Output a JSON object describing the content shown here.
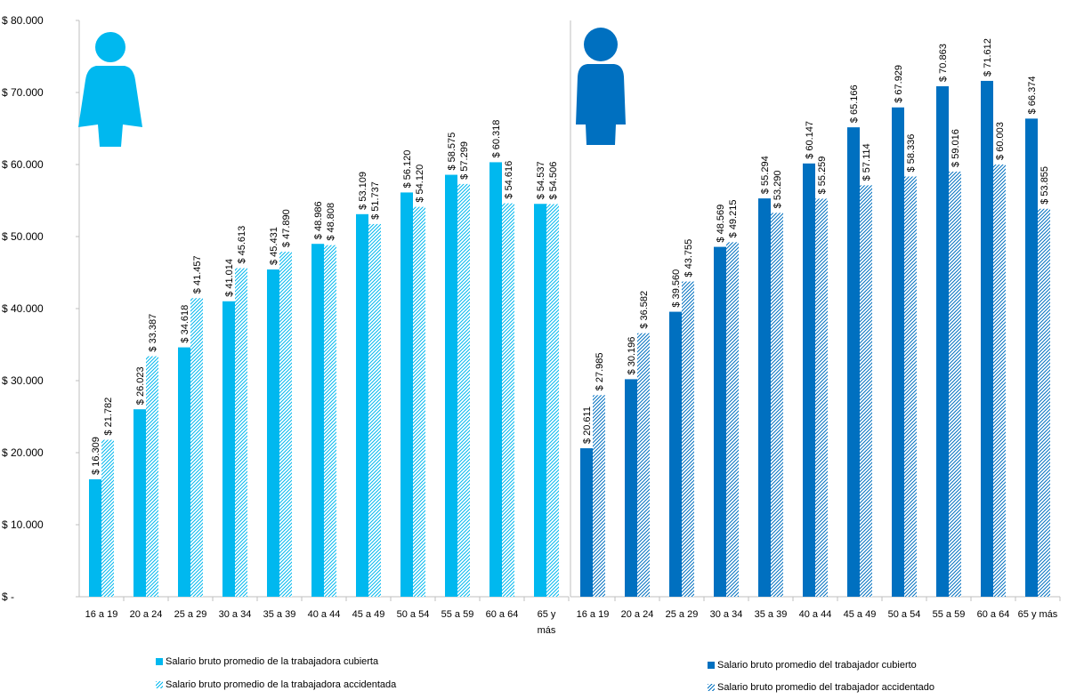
{
  "colors": {
    "women": "#00b8ef",
    "men": "#0070c0",
    "axis": "#bfbfbf"
  },
  "chart_data": [
    {
      "type": "bar",
      "categories": [
        "16 a 19",
        "20 a 24",
        "25 a 29",
        "30 a 34",
        "35 a 39",
        "40 a 44",
        "45 a 49",
        "50 a 54",
        "55 a 59",
        "60 a 64",
        "65 y más"
      ],
      "y_ticks": [
        "$ -",
        "$ 10.000",
        "$ 20.000",
        "$ 30.000",
        "$ 40.000",
        "$ 50.000",
        "$ 60.000",
        "$ 70.000",
        "$ 80.000"
      ],
      "ylim": [
        0,
        80000
      ],
      "icon": "woman-icon",
      "series": [
        {
          "name": "Salario bruto promedio de la trabajadora cubierta",
          "style": "solid",
          "values": [
            16309,
            26023,
            34618,
            41014,
            45431,
            48986,
            53109,
            56120,
            58575,
            60318,
            54537
          ],
          "labels": [
            "$ 16.309",
            "$ 26.023",
            "$ 34.618",
            "$ 41.014",
            "$ 45.431",
            "$ 48.986",
            "$ 53.109",
            "$ 56.120",
            "$ 58.575",
            "$ 60.318",
            "$ 54.537"
          ]
        },
        {
          "name": "Salario bruto promedio de la trabajadora accidentada",
          "style": "hatched",
          "values": [
            21782,
            33387,
            41457,
            45613,
            47890,
            48808,
            51737,
            54120,
            57299,
            54616,
            54506
          ],
          "labels": [
            "$ 21.782",
            "$ 33.387",
            "$ 41.457",
            "$ 45.613",
            "$ 47.890",
            "$ 48.808",
            "$ 51.737",
            "$ 54.120",
            "$ 57.299",
            "$ 54.616",
            "$ 54.506"
          ]
        }
      ]
    },
    {
      "type": "bar",
      "categories": [
        "16 a 19",
        "20 a 24",
        "25 a 29",
        "30 a 34",
        "35 a 39",
        "40 a 44",
        "45 a 49",
        "50 a 54",
        "55 a 59",
        "60 a 64",
        "65 y más"
      ],
      "ylim": [
        0,
        80000
      ],
      "icon": "man-icon",
      "series": [
        {
          "name": "Salario bruto promedio del trabajador cubierto",
          "style": "solid",
          "values": [
            20611,
            30196,
            39560,
            48569,
            55294,
            60147,
            65166,
            67929,
            70863,
            71612,
            66374
          ],
          "labels": [
            "$ 20.611",
            "$ 30.196",
            "$ 39.560",
            "$ 48.569",
            "$ 55.294",
            "$ 60.147",
            "$ 65.166",
            "$ 67.929",
            "$ 70.863",
            "$ 71.612",
            "$ 66.374"
          ]
        },
        {
          "name": "Salario bruto promedio del trabajador accidentado",
          "style": "hatched",
          "values": [
            27985,
            36582,
            43755,
            49215,
            53290,
            55259,
            57114,
            58336,
            59016,
            60003,
            53855
          ],
          "labels": [
            "$ 27.985",
            "$ 36.582",
            "$ 43.755",
            "$ 49.215",
            "$ 53.290",
            "$ 55.259",
            "$ 57.114",
            "$ 58.336",
            "$ 59.016",
            "$ 60.003",
            "$ 53.855"
          ]
        }
      ]
    }
  ]
}
